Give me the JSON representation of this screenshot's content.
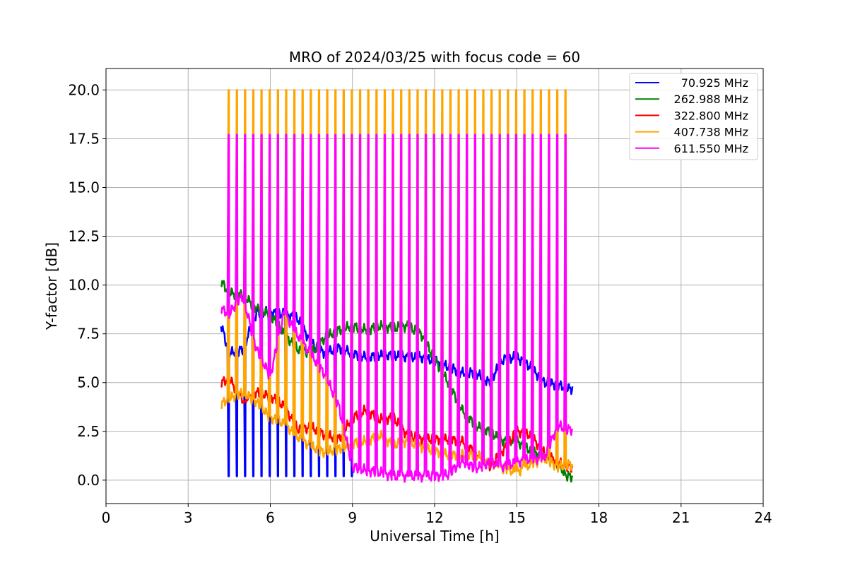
{
  "chart_data": {
    "type": "line",
    "title": "MRO of 2024/03/25 with focus code = 60",
    "xlabel": "Universal Time [h]",
    "ylabel": "Y-factor [dB]",
    "xlim": [
      0,
      24
    ],
    "ylim": [
      -1.2,
      21.1
    ],
    "xticks": [
      0,
      3,
      6,
      9,
      12,
      15,
      18,
      21,
      24
    ],
    "yticks": [
      0.0,
      2.5,
      5.0,
      7.5,
      10.0,
      12.5,
      15.0,
      17.5,
      20.0
    ],
    "xtick_labels": [
      "0",
      "3",
      "6",
      "9",
      "12",
      "15",
      "18",
      "21",
      "24"
    ],
    "ytick_labels": [
      "0.0",
      "2.5",
      "5.0",
      "7.5",
      "10.0",
      "12.5",
      "15.0",
      "17.5",
      "20.0"
    ],
    "grid": true,
    "legend_position": "top-right",
    "time_range": [
      4.2,
      16.85
    ],
    "spike_interval": 0.3,
    "series": [
      {
        "name": "70.925 MHz",
        "color": "#0000ff",
        "x": [
          4.2,
          4.5,
          5.0,
          5.5,
          6.0,
          6.5,
          7.0,
          7.5,
          8.0,
          8.5,
          9.0,
          9.5,
          10.0,
          10.5,
          11.0,
          11.5,
          12.0,
          12.5,
          13.0,
          13.5,
          14.0,
          14.5,
          15.0,
          15.5,
          16.0,
          16.5,
          16.85
        ],
        "y": [
          8.0,
          6.5,
          6.7,
          8.6,
          8.6,
          8.5,
          8.3,
          7.0,
          6.5,
          6.8,
          6.5,
          6.3,
          6.4,
          6.4,
          6.3,
          6.3,
          6.1,
          5.8,
          5.5,
          5.5,
          5.0,
          6.2,
          6.3,
          5.8,
          5.0,
          4.9,
          4.7
        ],
        "spike_min": 0.2
      },
      {
        "name": "262.988 MHz",
        "color": "#008000",
        "x": [
          4.2,
          4.5,
          5.0,
          5.5,
          6.0,
          6.5,
          7.0,
          7.5,
          8.0,
          8.5,
          9.0,
          9.5,
          10.0,
          10.5,
          11.0,
          11.5,
          12.0,
          12.5,
          13.0,
          13.5,
          14.0,
          14.5,
          15.0,
          15.5,
          16.0,
          16.5,
          16.85
        ],
        "y": [
          10.2,
          9.6,
          9.5,
          8.8,
          8.5,
          7.5,
          6.7,
          6.5,
          7.3,
          7.7,
          7.9,
          7.7,
          7.9,
          7.8,
          7.9,
          7.5,
          6.2,
          5.0,
          3.6,
          2.8,
          2.5,
          2.0,
          2.0,
          1.5,
          1.2,
          0.8,
          0.2
        ]
      },
      {
        "name": "322.800 MHz",
        "color": "#ff0000",
        "x": [
          4.2,
          4.5,
          5.0,
          5.5,
          6.0,
          6.5,
          7.0,
          7.5,
          8.0,
          8.5,
          9.0,
          9.5,
          10.0,
          10.5,
          11.0,
          11.5,
          12.0,
          12.5,
          13.0,
          13.5,
          14.0,
          14.5,
          15.0,
          15.5,
          16.0,
          16.5,
          16.85
        ],
        "y": [
          5.0,
          5.2,
          4.1,
          4.5,
          4.3,
          3.8,
          2.6,
          2.7,
          2.3,
          2.1,
          3.2,
          3.6,
          3.1,
          3.2,
          2.3,
          2.1,
          2.1,
          2.1,
          2.0,
          1.4,
          0.7,
          1.5,
          2.5,
          2.3,
          1.4,
          0.9,
          0.7
        ]
      },
      {
        "name": "407.738 MHz",
        "color": "#ffa500",
        "x": [
          4.2,
          4.5,
          5.0,
          5.5,
          6.0,
          6.5,
          7.0,
          7.5,
          8.0,
          8.5,
          9.0,
          9.5,
          10.0,
          10.5,
          11.0,
          11.5,
          12.0,
          12.5,
          13.0,
          13.5,
          14.0,
          14.5,
          15.0,
          15.5,
          16.0,
          16.5,
          16.85
        ],
        "y": [
          3.9,
          4.2,
          4.5,
          4.0,
          3.2,
          2.9,
          2.2,
          1.7,
          1.4,
          1.6,
          1.9,
          2.0,
          2.3,
          1.8,
          2.0,
          1.7,
          1.5,
          1.3,
          1.3,
          1.3,
          0.9,
          0.6,
          0.4,
          0.8,
          1.1,
          0.7,
          0.8
        ],
        "spike_max": 20.0
      },
      {
        "name": "611.550 MHz",
        "color": "#ff00ff",
        "x": [
          4.2,
          4.5,
          4.8,
          5.0,
          5.5,
          6.0,
          6.5,
          7.0,
          7.5,
          8.0,
          8.5,
          9.0,
          9.5,
          10.0,
          10.5,
          11.0,
          11.5,
          12.0,
          12.5,
          13.0,
          13.5,
          14.0,
          14.5,
          15.0,
          15.5,
          16.0,
          16.5,
          16.85
        ],
        "y": [
          8.8,
          8.5,
          9.2,
          9.4,
          6.7,
          5.3,
          8.6,
          7.4,
          6.4,
          5.4,
          3.8,
          0.7,
          0.5,
          0.4,
          0.2,
          0.2,
          0.2,
          0.2,
          0.3,
          1.0,
          0.6,
          0.9,
          0.7,
          0.9,
          1.1,
          1.1,
          2.8,
          2.6
        ],
        "spike_max": 17.7
      }
    ]
  }
}
